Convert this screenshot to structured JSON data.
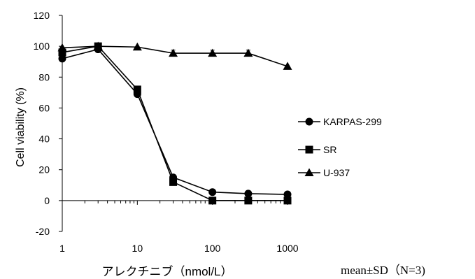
{
  "chart_data": {
    "type": "line",
    "title": "",
    "xlabel": "アレクチニブ（nmol/L）",
    "ylabel": "Cell viability (%)",
    "x_scale": "log",
    "xlim": [
      1,
      1000
    ],
    "ylim": [
      -20,
      120
    ],
    "y_ticks": [
      -20,
      0,
      20,
      40,
      60,
      80,
      100,
      120
    ],
    "x_tick_labels": [
      "1",
      "10",
      "100",
      "1000"
    ],
    "y_tick_labels": [
      "-20",
      "0",
      "20",
      "40",
      "60",
      "80",
      "100",
      "120"
    ],
    "grid": false,
    "legend_position": "right",
    "x": [
      1,
      3,
      10,
      30,
      100,
      300,
      1000
    ],
    "series": [
      {
        "name": "KARPAS-299",
        "marker": "circle",
        "color": "#000000",
        "values": [
          92,
          98,
          69,
          15,
          5.5,
          4.5,
          4
        ]
      },
      {
        "name": "SR",
        "marker": "square",
        "color": "#000000",
        "values": [
          96,
          100,
          72,
          12,
          0,
          0,
          0
        ]
      },
      {
        "name": "U-937",
        "marker": "triangle",
        "color": "#000000",
        "values": [
          99,
          100,
          99.5,
          95.5,
          95.5,
          95.5,
          87
        ],
        "errors": [
          0,
          0,
          0,
          2,
          2,
          2,
          0
        ]
      }
    ],
    "annotation": "mean±SD（N=3)"
  }
}
